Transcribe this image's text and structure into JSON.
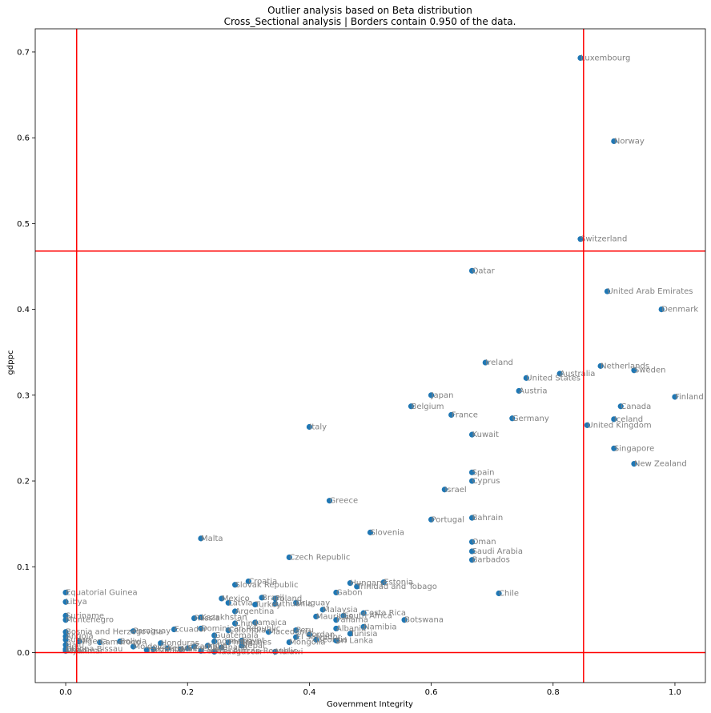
{
  "colors": {
    "point": "#1f77b4",
    "border": "#ff0000",
    "label": "#808080",
    "axis": "#000000"
  },
  "chart_data": {
    "type": "scatter",
    "title": "Outlier analysis based on Beta distribution",
    "subtitle": "Cross_Sectional analysis | Borders contain 0.950 of the data.",
    "xlabel": "Government Integrity",
    "ylabel": "gdppc",
    "xlim": [
      -0.05,
      1.05
    ],
    "ylim": [
      -0.035,
      0.727
    ],
    "xticks": [
      "0.0",
      "0.2",
      "0.4",
      "0.6",
      "0.8",
      "1.0"
    ],
    "yticks": [
      "0.0",
      "0.1",
      "0.2",
      "0.3",
      "0.4",
      "0.5",
      "0.6",
      "0.7"
    ],
    "borders": {
      "x_low": 0.018,
      "x_high": 0.85,
      "y_low": 0.0,
      "y_high": 0.468
    },
    "grid": false,
    "points": [
      {
        "label": "Luxembourg",
        "x": 0.845,
        "y": 0.693
      },
      {
        "label": "Norway",
        "x": 0.9,
        "y": 0.596
      },
      {
        "label": "Switzerland",
        "x": 0.845,
        "y": 0.482
      },
      {
        "label": "Qatar",
        "x": 0.667,
        "y": 0.445
      },
      {
        "label": "United Arab Emirates",
        "x": 0.889,
        "y": 0.421
      },
      {
        "label": "Denmark",
        "x": 0.978,
        "y": 0.4
      },
      {
        "label": "Ireland",
        "x": 0.689,
        "y": 0.338
      },
      {
        "label": "Netherlands",
        "x": 0.878,
        "y": 0.334
      },
      {
        "label": "Australia",
        "x": 0.811,
        "y": 0.325
      },
      {
        "label": "Sweden",
        "x": 0.933,
        "y": 0.329
      },
      {
        "label": "United States",
        "x": 0.756,
        "y": 0.32
      },
      {
        "label": "Austria",
        "x": 0.744,
        "y": 0.305
      },
      {
        "label": "Japan",
        "x": 0.6,
        "y": 0.3
      },
      {
        "label": "Finland",
        "x": 1.0,
        "y": 0.298
      },
      {
        "label": "Belgium",
        "x": 0.567,
        "y": 0.287
      },
      {
        "label": "Canada",
        "x": 0.911,
        "y": 0.287
      },
      {
        "label": "France",
        "x": 0.633,
        "y": 0.277
      },
      {
        "label": "Germany",
        "x": 0.733,
        "y": 0.273
      },
      {
        "label": "Iceland",
        "x": 0.9,
        "y": 0.272
      },
      {
        "label": "United Kingdom",
        "x": 0.856,
        "y": 0.265
      },
      {
        "label": "Italy",
        "x": 0.4,
        "y": 0.263
      },
      {
        "label": "Kuwait",
        "x": 0.667,
        "y": 0.254
      },
      {
        "label": "Singapore",
        "x": 0.9,
        "y": 0.238
      },
      {
        "label": "New Zealand",
        "x": 0.933,
        "y": 0.22
      },
      {
        "label": "Spain",
        "x": 0.667,
        "y": 0.21
      },
      {
        "label": "Cyprus",
        "x": 0.667,
        "y": 0.2
      },
      {
        "label": "Israel",
        "x": 0.622,
        "y": 0.19
      },
      {
        "label": "Greece",
        "x": 0.433,
        "y": 0.177
      },
      {
        "label": "Portugal",
        "x": 0.6,
        "y": 0.155
      },
      {
        "label": "Bahrain",
        "x": 0.667,
        "y": 0.157
      },
      {
        "label": "Slovenia",
        "x": 0.5,
        "y": 0.14
      },
      {
        "label": "Malta",
        "x": 0.222,
        "y": 0.133
      },
      {
        "label": "Oman",
        "x": 0.667,
        "y": 0.129
      },
      {
        "label": "Saudi Arabia",
        "x": 0.667,
        "y": 0.118
      },
      {
        "label": "Czech Republic",
        "x": 0.367,
        "y": 0.111
      },
      {
        "label": "Barbados",
        "x": 0.667,
        "y": 0.108
      },
      {
        "label": "Croatia",
        "x": 0.3,
        "y": 0.083
      },
      {
        "label": "Slovak Republic",
        "x": 0.278,
        "y": 0.079
      },
      {
        "label": "Hungary",
        "x": 0.467,
        "y": 0.081
      },
      {
        "label": "Estonia",
        "x": 0.522,
        "y": 0.082
      },
      {
        "label": "Trinidad and Tobago",
        "x": 0.478,
        "y": 0.077
      },
      {
        "label": "Equatorial Guinea",
        "x": 0.0,
        "y": 0.07
      },
      {
        "label": "Gabon",
        "x": 0.444,
        "y": 0.07
      },
      {
        "label": "Chile",
        "x": 0.711,
        "y": 0.069
      },
      {
        "label": "Mexico",
        "x": 0.256,
        "y": 0.063
      },
      {
        "label": "Brazil",
        "x": 0.322,
        "y": 0.064
      },
      {
        "label": "Poland",
        "x": 0.344,
        "y": 0.063
      },
      {
        "label": "Libya",
        "x": 0.0,
        "y": 0.059
      },
      {
        "label": "Latvia",
        "x": 0.267,
        "y": 0.058
      },
      {
        "label": "Turkey",
        "x": 0.311,
        "y": 0.056
      },
      {
        "label": "Lithuania",
        "x": 0.344,
        "y": 0.057
      },
      {
        "label": "Uruguay",
        "x": 0.378,
        "y": 0.058
      },
      {
        "label": "Argentina",
        "x": 0.278,
        "y": 0.048
      },
      {
        "label": "Malaysia",
        "x": 0.422,
        "y": 0.05
      },
      {
        "label": "Costa Rica",
        "x": 0.489,
        "y": 0.046
      },
      {
        "label": "Mauritius",
        "x": 0.411,
        "y": 0.042
      },
      {
        "label": "South Africa",
        "x": 0.456,
        "y": 0.043
      },
      {
        "label": "Suriname",
        "x": 0.0,
        "y": 0.043
      },
      {
        "label": "Kazakhstan",
        "x": 0.222,
        "y": 0.041
      },
      {
        "label": "Russia",
        "x": 0.211,
        "y": 0.04
      },
      {
        "label": "Panama",
        "x": 0.444,
        "y": 0.038
      },
      {
        "label": "Botswana",
        "x": 0.556,
        "y": 0.038
      },
      {
        "label": "Montenegro",
        "x": 0.0,
        "y": 0.038
      },
      {
        "label": "Jamaica",
        "x": 0.311,
        "y": 0.035
      },
      {
        "label": "China",
        "x": 0.278,
        "y": 0.034
      },
      {
        "label": "Namibia",
        "x": 0.489,
        "y": 0.03
      },
      {
        "label": "Ecuador",
        "x": 0.178,
        "y": 0.027
      },
      {
        "label": "Paraguay",
        "x": 0.111,
        "y": 0.025
      },
      {
        "label": "Bosnia and Herzegovina",
        "x": 0.0,
        "y": 0.024
      },
      {
        "label": "Peru",
        "x": 0.378,
        "y": 0.026
      },
      {
        "label": "Macedonia",
        "x": 0.333,
        "y": 0.024
      },
      {
        "label": "Colombia",
        "x": 0.267,
        "y": 0.026
      },
      {
        "label": "Dominican Republic",
        "x": 0.222,
        "y": 0.028
      },
      {
        "label": "Albania",
        "x": 0.444,
        "y": 0.028
      },
      {
        "label": "Tunisia",
        "x": 0.467,
        "y": 0.022
      },
      {
        "label": "Jordan",
        "x": 0.4,
        "y": 0.021
      },
      {
        "label": "El Salvador",
        "x": 0.378,
        "y": 0.018
      },
      {
        "label": "Guatemala",
        "x": 0.244,
        "y": 0.02
      },
      {
        "label": "Mongolia",
        "x": 0.367,
        "y": 0.012
      },
      {
        "label": "Sri Lanka",
        "x": 0.444,
        "y": 0.014
      },
      {
        "label": "Georgia",
        "x": 0.411,
        "y": 0.015
      },
      {
        "label": "Angola",
        "x": 0.0,
        "y": 0.019
      },
      {
        "label": "Nigeria",
        "x": 0.022,
        "y": 0.013
      },
      {
        "label": "Bolivia",
        "x": 0.089,
        "y": 0.013
      },
      {
        "label": "Honduras",
        "x": 0.156,
        "y": 0.011
      },
      {
        "label": "Indonesia",
        "x": 0.244,
        "y": 0.013
      },
      {
        "label": "Philippines",
        "x": 0.267,
        "y": 0.012
      },
      {
        "label": "Egypt",
        "x": 0.289,
        "y": 0.014
      },
      {
        "label": "Nepal",
        "x": 0.289,
        "y": 0.008
      },
      {
        "label": "Ghana",
        "x": 0.256,
        "y": 0.006
      },
      {
        "label": "Zambia",
        "x": 0.211,
        "y": 0.007
      },
      {
        "label": "India",
        "x": 0.233,
        "y": 0.008
      },
      {
        "label": "Senegal",
        "x": 0.2,
        "y": 0.005
      },
      {
        "label": "Mali",
        "x": 0.189,
        "y": 0.004
      },
      {
        "label": "Kenya",
        "x": 0.167,
        "y": 0.005
      },
      {
        "label": "Uganda",
        "x": 0.144,
        "y": 0.004
      },
      {
        "label": "Tanzania",
        "x": 0.133,
        "y": 0.003
      },
      {
        "label": "Guinea-Bissau",
        "x": 0.0,
        "y": 0.004
      },
      {
        "label": "Chad",
        "x": 0.0,
        "y": 0.003
      },
      {
        "label": "Myanmar",
        "x": 0.0,
        "y": 0.002
      },
      {
        "label": "Central African Republic",
        "x": 0.222,
        "y": 0.002
      },
      {
        "label": "Madagascar",
        "x": 0.244,
        "y": 0.001
      },
      {
        "label": "Malawi",
        "x": 0.344,
        "y": 0.001
      },
      {
        "label": "Haiti",
        "x": 0.0,
        "y": 0.009
      },
      {
        "label": "Moldova",
        "x": 0.111,
        "y": 0.007
      },
      {
        "label": "Sudan",
        "x": 0.0,
        "y": 0.015
      },
      {
        "label": "Cameroon",
        "x": 0.056,
        "y": 0.012
      }
    ]
  }
}
